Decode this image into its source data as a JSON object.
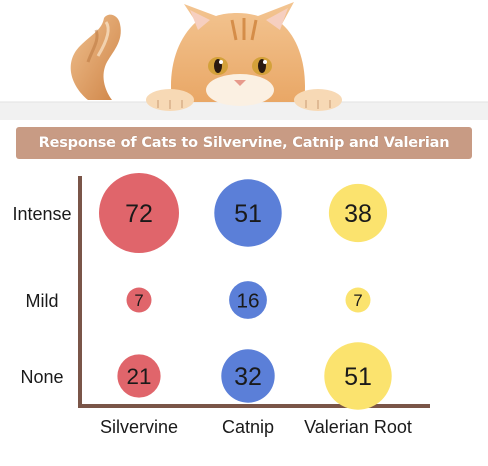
{
  "chart_data": {
    "type": "bubble",
    "title": "Response of Cats to Silvervine, Catnip and Valerian",
    "categories": [
      "Silvervine",
      "Catnip",
      "Valerian Root"
    ],
    "levels": [
      "Intense",
      "Mild",
      "None"
    ],
    "series": [
      {
        "name": "Silvervine",
        "color": "#e0656b",
        "values": {
          "Intense": 72,
          "Mild": 7,
          "None": 21
        }
      },
      {
        "name": "Catnip",
        "color": "#5b7fd8",
        "values": {
          "Intense": 51,
          "Mild": 16,
          "None": 32
        }
      },
      {
        "name": "Valerian Root",
        "color": "#fbe36e",
        "values": {
          "Intense": 38,
          "Mild": 7,
          "None": 51
        }
      }
    ],
    "axis_color": "#7a5548",
    "grid": false,
    "legend": "none"
  },
  "decor": {
    "photo_icon": "cat-peeking-icon",
    "banner_color": "#c89b84"
  }
}
